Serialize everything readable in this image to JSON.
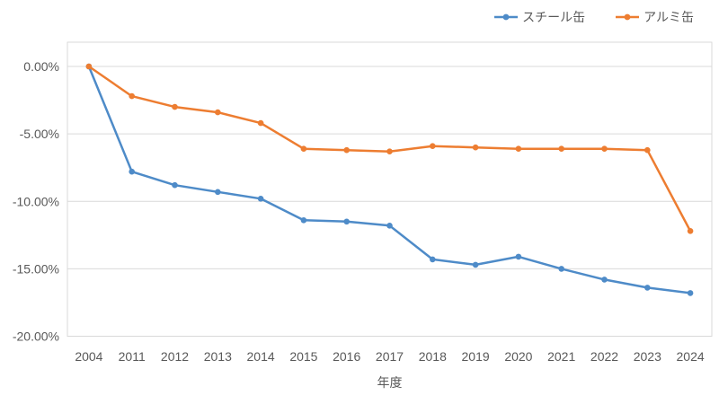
{
  "chart_data": {
    "type": "line",
    "title": "",
    "xlabel": "年度",
    "ylabel": "",
    "categories": [
      "2004",
      "2011",
      "2012",
      "2013",
      "2014",
      "2015",
      "2016",
      "2017",
      "2018",
      "2019",
      "2020",
      "2021",
      "2022",
      "2023",
      "2024"
    ],
    "series": [
      {
        "name": "スチール缶",
        "color": "#4E8BC8",
        "values": [
          0.0,
          -7.8,
          -8.8,
          -9.3,
          -9.8,
          -11.4,
          -11.5,
          -11.8,
          -14.3,
          -14.7,
          -14.1,
          -15.0,
          -15.8,
          -16.4,
          -16.8
        ]
      },
      {
        "name": "アルミ缶",
        "color": "#ED7D31",
        "values": [
          0.0,
          -2.2,
          -3.0,
          -3.4,
          -4.2,
          -6.1,
          -6.2,
          -6.3,
          -5.9,
          -6.0,
          -6.1,
          -6.1,
          -6.1,
          -6.2,
          -12.2
        ]
      }
    ],
    "y_ticks": [
      {
        "value": 0,
        "label": "0.00%"
      },
      {
        "value": -5,
        "label": "-5.00%"
      },
      {
        "value": -10,
        "label": "-10.00%"
      },
      {
        "value": -15,
        "label": "-15.00%"
      },
      {
        "value": -20,
        "label": "-20.00%"
      }
    ],
    "ylim": [
      -20,
      1.8
    ],
    "grid": "horizontal-major",
    "legend_position": "top-right"
  },
  "colors": {
    "grid": "#D9D9D9",
    "plot_border": "#D9D9D9",
    "axis_text": "#595959",
    "background": "#FFFFFF"
  }
}
